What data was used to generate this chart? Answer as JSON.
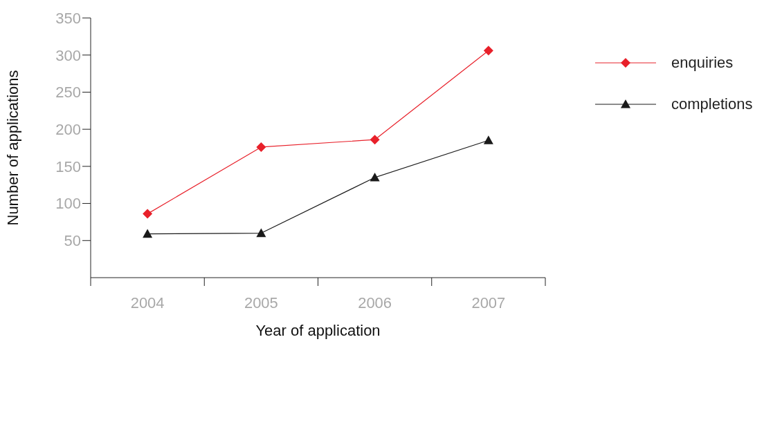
{
  "chart_data": {
    "type": "line",
    "xlabel": "Year of application",
    "ylabel": "Number of applications",
    "categories": [
      "2004",
      "2005",
      "2006",
      "2007"
    ],
    "series": [
      {
        "name": "enquiries",
        "color": "#e8202a",
        "marker": "diamond",
        "values": [
          86,
          176,
          186,
          306
        ]
      },
      {
        "name": "completions",
        "color": "#1a1a1a",
        "marker": "triangle",
        "values": [
          59,
          60,
          135,
          185
        ]
      }
    ],
    "ylim": [
      0,
      350
    ],
    "yticks": [
      50,
      100,
      150,
      200,
      250,
      300,
      350
    ],
    "legend": "top right"
  }
}
